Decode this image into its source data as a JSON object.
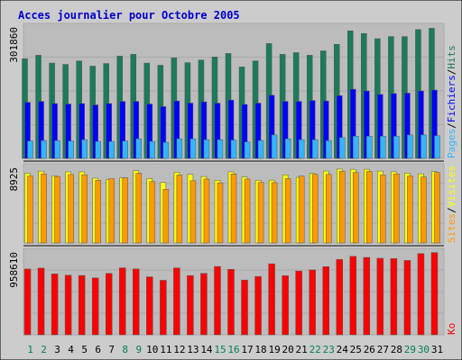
{
  "title": "Acces journalier pour Octobre 2005",
  "colors": {
    "background": "#cccccc",
    "panel": "#bcbcbc",
    "grid": "#aaaaaa",
    "title": "#0000cc",
    "weekday_label": "#000000",
    "weekend_label": "#00805a",
    "axis_label": "#000000",
    "hits": "#1b7b5b",
    "files": "#0000ff",
    "pages": "#33b5ff",
    "visits": "#ffff00",
    "sites": "#ff9900",
    "ko": "#ff0000",
    "separator": "#000000"
  },
  "chart_data": [
    {
      "type": "bar",
      "panel": "top",
      "y_max_label": "301860",
      "ylim": [
        0,
        301860
      ],
      "legend": [
        {
          "name": "Pages",
          "color": "#33b5ff"
        },
        {
          "name": "/",
          "color": "#000000"
        },
        {
          "name": "Fichiers",
          "color": "#0000ff"
        },
        {
          "name": "/",
          "color": "#000000"
        },
        {
          "name": "Hits",
          "color": "#1b7b5b"
        }
      ],
      "categories": [
        "1",
        "2",
        "3",
        "4",
        "5",
        "6",
        "7",
        "8",
        "9",
        "10",
        "11",
        "12",
        "13",
        "14",
        "15",
        "16",
        "17",
        "18",
        "19",
        "20",
        "21",
        "22",
        "23",
        "24",
        "25",
        "26",
        "27",
        "28",
        "29",
        "30",
        "31"
      ],
      "series": [
        {
          "name": "Hits",
          "values": [
            229000,
            237000,
            219000,
            216000,
            224000,
            212000,
            218000,
            235000,
            239000,
            219000,
            214000,
            231000,
            220000,
            226000,
            233000,
            241000,
            210000,
            224000,
            264000,
            239000,
            243000,
            237000,
            247000,
            262000,
            293000,
            287000,
            275000,
            280000,
            280000,
            296000,
            299000
          ]
        },
        {
          "name": "Fichiers",
          "values": [
            129000,
            131000,
            126000,
            125000,
            126000,
            123000,
            126000,
            131000,
            131000,
            125000,
            119000,
            132000,
            127000,
            130000,
            127000,
            134000,
            124000,
            127000,
            145000,
            131000,
            131000,
            133000,
            132000,
            144000,
            159000,
            155000,
            147000,
            149000,
            150000,
            155000,
            157000
          ]
        },
        {
          "name": "Pages",
          "values": [
            40000,
            41000,
            41000,
            40000,
            43000,
            39000,
            39000,
            40000,
            45000,
            39000,
            37000,
            45000,
            45000,
            43000,
            43000,
            42000,
            38000,
            41000,
            54000,
            45000,
            43000,
            43000,
            41000,
            48000,
            51000,
            51000,
            51000,
            51000,
            54000,
            54000,
            52000
          ]
        }
      ]
    },
    {
      "type": "bar",
      "panel": "middle",
      "y_max_label": "8925",
      "ylim": [
        0,
        8925
      ],
      "legend": [
        {
          "name": "Sites",
          "color": "#ff9900"
        },
        {
          "name": "/",
          "color": "#000000"
        },
        {
          "name": "Visites",
          "color": "#ffff00"
        }
      ],
      "categories": [
        "1",
        "2",
        "3",
        "4",
        "5",
        "6",
        "7",
        "8",
        "9",
        "10",
        "11",
        "12",
        "13",
        "14",
        "15",
        "16",
        "17",
        "18",
        "19",
        "20",
        "21",
        "22",
        "23",
        "24",
        "25",
        "26",
        "27",
        "28",
        "29",
        "30",
        "31"
      ],
      "series": [
        {
          "name": "Visites",
          "values": [
            8250,
            8480,
            7950,
            8400,
            8400,
            7650,
            7500,
            7700,
            8550,
            7600,
            7150,
            8360,
            8100,
            7850,
            7400,
            8400,
            7800,
            7400,
            7420,
            8050,
            7750,
            8230,
            8490,
            8720,
            8700,
            8700,
            8490,
            8400,
            8260,
            8170,
            8420
          ]
        },
        {
          "name": "Sites",
          "values": [
            7900,
            8150,
            7850,
            8080,
            8060,
            7400,
            7600,
            7700,
            8230,
            7250,
            6350,
            8020,
            7350,
            7550,
            7100,
            8150,
            7550,
            7150,
            7130,
            7600,
            7900,
            8100,
            8100,
            8460,
            8330,
            8440,
            8030,
            8150,
            7900,
            7800,
            8320
          ]
        }
      ]
    },
    {
      "type": "bar",
      "panel": "bottom",
      "y_max_label": "958610",
      "ylim": [
        0,
        958610
      ],
      "legend": [
        {
          "name": "Ko",
          "color": "#ff0000"
        }
      ],
      "categories": [
        "1",
        "2",
        "3",
        "4",
        "5",
        "6",
        "7",
        "8",
        "9",
        "10",
        "11",
        "12",
        "13",
        "14",
        "15",
        "16",
        "17",
        "18",
        "19",
        "20",
        "21",
        "22",
        "23",
        "24",
        "25",
        "26",
        "27",
        "28",
        "29",
        "30",
        "31"
      ],
      "series": [
        {
          "name": "Ko",
          "values": [
            762000,
            772000,
            705000,
            690000,
            687000,
            659000,
            711000,
            775000,
            762000,
            671000,
            631000,
            774000,
            686000,
            711000,
            791000,
            758000,
            634000,
            676000,
            822000,
            684000,
            739000,
            751000,
            789000,
            872000,
            908000,
            896000,
            886000,
            882000,
            861000,
            940000,
            952000
          ]
        }
      ]
    }
  ],
  "weekend_days": [
    "1",
    "2",
    "8",
    "9",
    "15",
    "16",
    "22",
    "23",
    "29",
    "30"
  ]
}
